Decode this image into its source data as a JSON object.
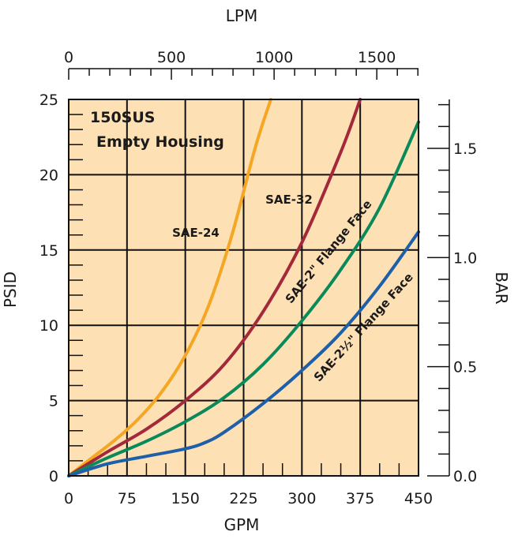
{
  "chart_data": {
    "type": "line",
    "x_axis": {
      "label": "GPM",
      "ticks": [
        "0",
        "75",
        "150",
        "225",
        "300",
        "375",
        "450"
      ],
      "range": [
        0,
        450
      ]
    },
    "y_axis": {
      "label": "PSID",
      "ticks": [
        "0",
        "5",
        "10",
        "15",
        "20",
        "25"
      ],
      "range": [
        0,
        25
      ]
    },
    "secondary_x_axis": {
      "label": "LPM",
      "ticks": [
        "0",
        "500",
        "1000",
        "1500"
      ],
      "range": [
        0,
        1703
      ]
    },
    "secondary_y_axis": {
      "label": "BAR",
      "ticks": [
        "0.0",
        "0.5",
        "1.0",
        "1.5"
      ],
      "range": [
        0,
        1.724
      ]
    },
    "annotation_lines": [
      "150SUS",
      "Empty Housing"
    ],
    "grid": true,
    "background_color": "#fde0b4",
    "series": [
      {
        "name": "SAE-24",
        "color": "#f5a623",
        "label_text": "SAE-24",
        "x": [
          0,
          30,
          60,
          90,
          120,
          150,
          180,
          210,
          240,
          260
        ],
        "y": [
          0,
          1.2,
          2.4,
          3.8,
          5.6,
          8.0,
          11.3,
          16.0,
          21.8,
          25.0
        ]
      },
      {
        "name": "SAE-32",
        "color": "#a3283a",
        "label_text": "SAE-32",
        "x": [
          0,
          50,
          100,
          150,
          200,
          250,
          300,
          350,
          375
        ],
        "y": [
          0,
          1.6,
          3.1,
          5.0,
          7.4,
          10.9,
          15.5,
          21.5,
          25.0
        ]
      },
      {
        "name": "SAE-2\" Flange Face",
        "color": "#0a8a5a",
        "label_text": "SAE-2\" Flange Face",
        "x": [
          0,
          50,
          100,
          150,
          200,
          250,
          300,
          350,
          400,
          450
        ],
        "y": [
          0,
          1.2,
          2.3,
          3.6,
          5.2,
          7.4,
          10.3,
          13.7,
          17.8,
          23.5
        ]
      },
      {
        "name": "SAE-2½\" Flange Face",
        "color": "#1d5fa8",
        "label_text": "SAE-2½\" Flange Face",
        "x": [
          0,
          50,
          100,
          150,
          175,
          200,
          250,
          300,
          350,
          400,
          450
        ],
        "y": [
          0,
          0.8,
          1.3,
          1.8,
          2.2,
          2.9,
          4.8,
          7.0,
          9.5,
          12.6,
          16.2
        ]
      }
    ]
  }
}
